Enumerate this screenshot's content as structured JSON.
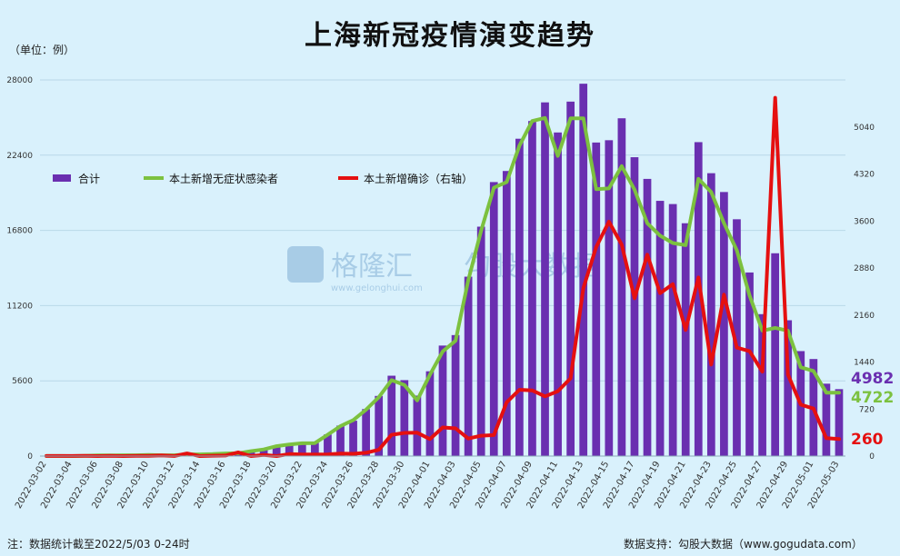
{
  "title": "上海新冠疫情演变趋势",
  "unit_label": "（单位：例）",
  "footnote": "注：数据统计截至2022/5/03 0-24时",
  "source": "数据支持：勾股大数据（www.gogudata.com）",
  "watermark": {
    "brand": "格隆汇",
    "domain": "www.gelonghui.com",
    "partner": "勾股大数据"
  },
  "chart_data": {
    "type": "bar+line",
    "categories": [
      "2022-03-02",
      "2022-03-03",
      "2022-03-04",
      "2022-03-05",
      "2022-03-06",
      "2022-03-07",
      "2022-03-08",
      "2022-03-09",
      "2022-03-10",
      "2022-03-11",
      "2022-03-12",
      "2022-03-13",
      "2022-03-14",
      "2022-03-15",
      "2022-03-16",
      "2022-03-17",
      "2022-03-18",
      "2022-03-19",
      "2022-03-20",
      "2022-03-21",
      "2022-03-22",
      "2022-03-23",
      "2022-03-24",
      "2022-03-25",
      "2022-03-26",
      "2022-03-27",
      "2022-03-28",
      "2022-03-29",
      "2022-03-30",
      "2022-03-31",
      "2022-04-01",
      "2022-04-02",
      "2022-04-03",
      "2022-04-04",
      "2022-04-05",
      "2022-04-06",
      "2022-04-07",
      "2022-04-08",
      "2022-04-09",
      "2022-04-10",
      "2022-04-11",
      "2022-04-12",
      "2022-04-13",
      "2022-04-14",
      "2022-04-15",
      "2022-04-16",
      "2022-04-17",
      "2022-04-18",
      "2022-04-19",
      "2022-04-20",
      "2022-04-21",
      "2022-04-22",
      "2022-04-23",
      "2022-04-24",
      "2022-04-25",
      "2022-04-26",
      "2022-04-27",
      "2022-04-28",
      "2022-04-29",
      "2022-04-30",
      "2022-05-01",
      "2022-05-02",
      "2022-05-03"
    ],
    "tick_labels": [
      "2022-03-02",
      "2022-03-04",
      "2022-03-06",
      "2022-03-08",
      "2022-03-10",
      "2022-03-12",
      "2022-03-14",
      "2022-03-16",
      "2022-03-18",
      "2022-03-20",
      "2022-03-22",
      "2022-03-24",
      "2022-03-26",
      "2022-03-28",
      "2022-03-30",
      "2022-04-01",
      "2022-04-03",
      "2022-04-05",
      "2022-04-07",
      "2022-04-09",
      "2022-04-11",
      "2022-04-13",
      "2022-04-15",
      "2022-04-17",
      "2022-04-19",
      "2022-04-21",
      "2022-04-23",
      "2022-04-25",
      "2022-04-27",
      "2022-04-29",
      "2022-05-01",
      "2022-05-03"
    ],
    "y_left": {
      "ticks": [
        "0",
        "5600",
        "11200",
        "16800",
        "22400",
        "28000"
      ],
      "lim": [
        0,
        28000
      ]
    },
    "y_right": {
      "ticks": [
        "0",
        "720",
        "1440",
        "2160",
        "2880",
        "3600",
        "4320",
        "5040"
      ],
      "lim": [
        0,
        5760
      ]
    },
    "series": [
      {
        "name": "合计",
        "kind": "bar",
        "axis": "left",
        "color": "#6a2fb0",
        "values": [
          8,
          6,
          5,
          14,
          45,
          51,
          62,
          76,
          83,
          75,
          65,
          169,
          130,
          199,
          202,
          260,
          366,
          509,
          734,
          896,
          981,
          979,
          1609,
          2269,
          2631,
          3500,
          4477,
          5982,
          5653,
          4502,
          6311,
          8226,
          9006,
          13354,
          17077,
          20398,
          21222,
          23624,
          24944,
          26330,
          24090,
          26387,
          27719,
          23342,
          23513,
          25146,
          22248,
          20634,
          19000,
          18761,
          17332,
          23370,
          21058,
          19657,
          17629,
          13667,
          10565,
          15097,
          10111,
          7814,
          7224,
          5388,
          4982
        ]
      },
      {
        "name": "本土新增无症状感染者",
        "kind": "line",
        "axis": "left",
        "color": "#7cc13f",
        "values": [
          6,
          4,
          3,
          11,
          45,
          48,
          62,
          64,
          78,
          64,
          64,
          128,
          130,
          150,
          197,
          203,
          366,
          492,
          734,
          865,
          957,
          969,
          1582,
          2231,
          2676,
          3450,
          4381,
          5656,
          5298,
          4144,
          6051,
          7788,
          8581,
          13086,
          16766,
          19982,
          20398,
          23107,
          24944,
          25173,
          22348,
          25141,
          25146,
          19872,
          19923,
          21582,
          19831,
          17332,
          16407,
          15861,
          15698,
          20634,
          19657,
          17332,
          15319,
          11956,
          9330,
          9545,
          9330,
          6606,
          6339,
          4722,
          4722
        ]
      },
      {
        "name": "本土新增确诊（右轴）",
        "kind": "line",
        "axis": "right",
        "color": "#e51010",
        "values": [
          2,
          2,
          2,
          3,
          0,
          3,
          0,
          4,
          4,
          11,
          1,
          41,
          0,
          5,
          9,
          57,
          0,
          17,
          0,
          31,
          24,
          24,
          27,
          38,
          35,
          50,
          96,
          326,
          355,
          358,
          260,
          438,
          425,
          268,
          311,
          322,
          824,
          1015,
          1006,
          914,
          994,
          1189,
          2573,
          3200,
          3590,
          3238,
          2417,
          3084,
          2494,
          2634,
          1931,
          2736,
          1401,
          2472,
          1661,
          1606,
          1292,
          5487,
          1249,
          788,
          727,
          274,
          260
        ]
      }
    ],
    "end_labels": [
      "4982",
      "4722",
      "260"
    ]
  }
}
